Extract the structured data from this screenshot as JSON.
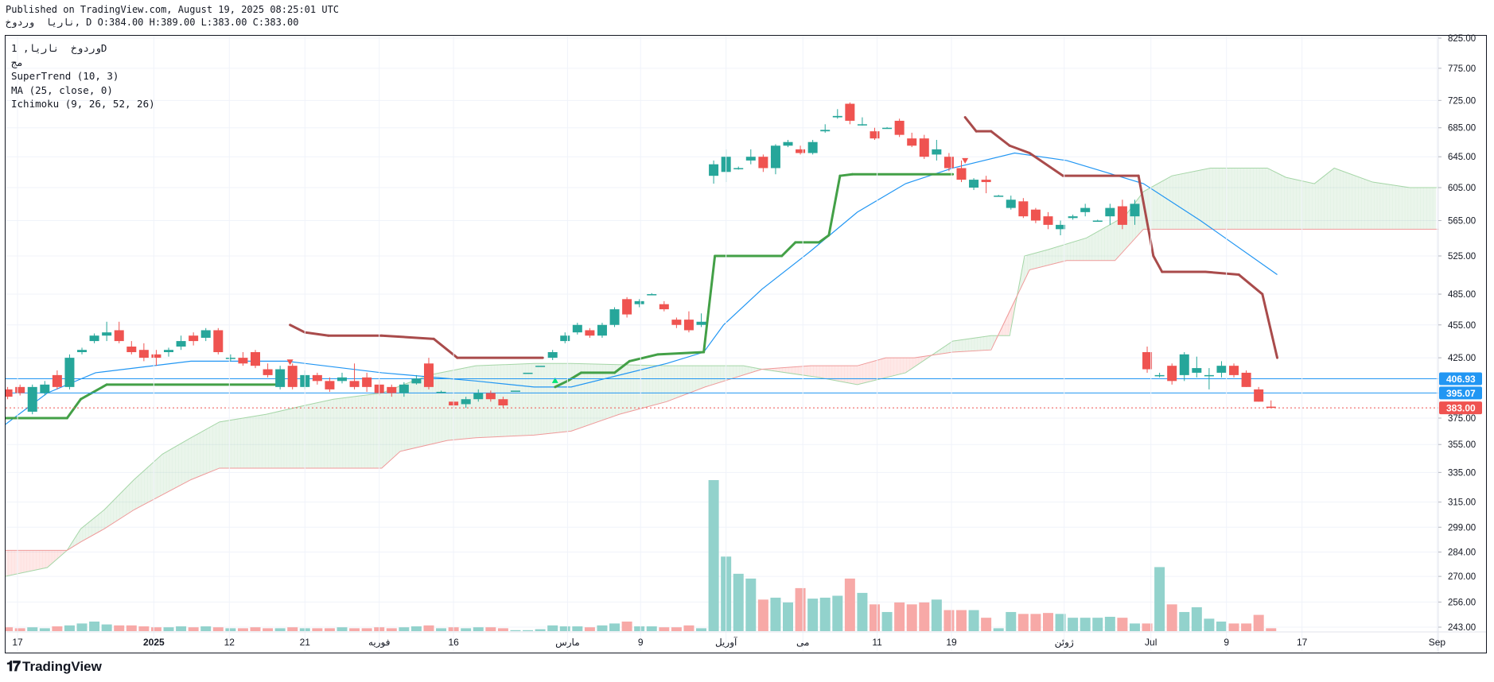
{
  "header": {
    "published": "Published on TradingView.com, August 19, 2025 08:25:01 UTC",
    "ohlc_line": "ناریا  وردوخ, D O:384.00 H:389.00 L:383.00 C:383.00"
  },
  "legend": {
    "symbol": "وردوخ  ناریا, 1D",
    "exchange": "مج",
    "supertrend": "SuperTrend (10, 3)",
    "ma": "MA (25, close, 0)",
    "ichimoku": "Ichimoku (9, 26, 52, 26)"
  },
  "brand": "TradingView",
  "colors": {
    "up": "#26a69a",
    "down": "#ef5350",
    "vol_up": "#92d2cc",
    "vol_down": "#f7a9a7",
    "st_up": "#43a047",
    "st_down": "#a94b4b",
    "ma": "#2196f3",
    "span_a": "#a5d6a7",
    "span_b": "#ef9a9a",
    "hline": "#2196f3"
  },
  "chart_data": {
    "type": "candlestick",
    "scale": "log",
    "ylim": [
      243,
      825
    ],
    "y_ticks": [
      "825.00",
      "775.00",
      "725.00",
      "685.00",
      "645.00",
      "605.00",
      "565.00",
      "525.00",
      "485.00",
      "455.00",
      "425.00",
      "375.00",
      "355.00",
      "335.00",
      "315.00",
      "299.00",
      "284.00",
      "270.00",
      "256.00",
      "243.00"
    ],
    "x_ticks": [
      {
        "i": 0.8,
        "label": "17"
      },
      {
        "i": 11.8,
        "label": "2025"
      },
      {
        "i": 17.9,
        "label": "12"
      },
      {
        "i": 24,
        "label": "21"
      },
      {
        "i": 30,
        "label": "فوریه"
      },
      {
        "i": 36,
        "label": "16"
      },
      {
        "i": 45.2,
        "label": "مارس"
      },
      {
        "i": 51.1,
        "label": "9"
      },
      {
        "i": 58,
        "label": "آوریل"
      },
      {
        "i": 64.2,
        "label": "می"
      },
      {
        "i": 70.2,
        "label": "11"
      },
      {
        "i": 76.2,
        "label": "19"
      },
      {
        "i": 85.3,
        "label": "ژوئن"
      },
      {
        "i": 92.3,
        "label": "Jul"
      },
      {
        "i": 98.4,
        "label": "9"
      },
      {
        "i": 104.5,
        "label": "17"
      },
      {
        "i": 115.4,
        "label": "Sep"
      }
    ],
    "price_labels": [
      {
        "value": 406.93,
        "label": "406.93",
        "color": "#2196f3"
      },
      {
        "value": 395.07,
        "label": "395.07",
        "color": "#2196f3"
      },
      {
        "value": 383.0,
        "label": "383.00",
        "color": "#ef5350"
      }
    ],
    "ohlc": [
      [
        398,
        400,
        390,
        392
      ],
      [
        400,
        402,
        393,
        395
      ],
      [
        380,
        402,
        378,
        400
      ],
      [
        395,
        405,
        393,
        402
      ],
      [
        410,
        414,
        398,
        400
      ],
      [
        400,
        428,
        398,
        425
      ],
      [
        430,
        434,
        428,
        432
      ],
      [
        440,
        447,
        438,
        445
      ],
      [
        445,
        458,
        440,
        448
      ],
      [
        450,
        458,
        438,
        440
      ],
      [
        435,
        440,
        428,
        430
      ],
      [
        432,
        438,
        422,
        425
      ],
      [
        428,
        432,
        418,
        425
      ],
      [
        430,
        434,
        426,
        432
      ],
      [
        435,
        445,
        432,
        440
      ],
      [
        445,
        448,
        436,
        440
      ],
      [
        443,
        452,
        440,
        450
      ],
      [
        450,
        452,
        428,
        430
      ],
      [
        425,
        428,
        422,
        425
      ],
      [
        425,
        430,
        418,
        420
      ],
      [
        430,
        432,
        416,
        418
      ],
      [
        415,
        420,
        408,
        410
      ],
      [
        400,
        418,
        398,
        415
      ],
      [
        418,
        420,
        398,
        400
      ],
      [
        400,
        414,
        398,
        410
      ],
      [
        410,
        412,
        402,
        405
      ],
      [
        405,
        408,
        396,
        398
      ],
      [
        405,
        412,
        403,
        408
      ],
      [
        405,
        420,
        398,
        400
      ],
      [
        408,
        412,
        396,
        400
      ],
      [
        402,
        406,
        393,
        395
      ],
      [
        400,
        402,
        392,
        395
      ],
      [
        395,
        404,
        392,
        402
      ],
      [
        403,
        410,
        402,
        407
      ],
      [
        420,
        425,
        398,
        400
      ],
      [
        396,
        397,
        395,
        396
      ],
      [
        388,
        390,
        383,
        385
      ],
      [
        386,
        392,
        383,
        390
      ],
      [
        390,
        398,
        388,
        395
      ],
      [
        395,
        397,
        388,
        390
      ],
      [
        390,
        392,
        383,
        385
      ],
      [
        397,
        397,
        397,
        397
      ],
      [
        412,
        412,
        412,
        412
      ],
      [
        418,
        418,
        418,
        418
      ],
      [
        425,
        432,
        423,
        430
      ],
      [
        440,
        448,
        438,
        445
      ],
      [
        448,
        457,
        446,
        455
      ],
      [
        450,
        452,
        443,
        445
      ],
      [
        445,
        457,
        443,
        455
      ],
      [
        455,
        472,
        453,
        470
      ],
      [
        480,
        482,
        462,
        465
      ],
      [
        475,
        480,
        472,
        478
      ],
      [
        484,
        486,
        484,
        485
      ],
      [
        475,
        478,
        468,
        470
      ],
      [
        460,
        462,
        452,
        455
      ],
      [
        460,
        468,
        448,
        450
      ],
      [
        455,
        466,
        453,
        458
      ],
      [
        620,
        640,
        610,
        635
      ],
      [
        625,
        655,
        612,
        645
      ],
      [
        630,
        632,
        628,
        630
      ],
      [
        640,
        655,
        635,
        645
      ],
      [
        645,
        648,
        625,
        630
      ],
      [
        630,
        662,
        622,
        660
      ],
      [
        660,
        668,
        658,
        665
      ],
      [
        655,
        660,
        648,
        650
      ],
      [
        650,
        668,
        648,
        665
      ],
      [
        680,
        690,
        678,
        682
      ],
      [
        700,
        712,
        698,
        702
      ],
      [
        720,
        722,
        690,
        695
      ],
      [
        690,
        700,
        688,
        690
      ],
      [
        680,
        685,
        668,
        670
      ],
      [
        685,
        686,
        684,
        685
      ],
      [
        695,
        698,
        672,
        675
      ],
      [
        670,
        678,
        658,
        660
      ],
      [
        670,
        675,
        642,
        645
      ],
      [
        648,
        668,
        640,
        655
      ],
      [
        645,
        650,
        626,
        630
      ],
      [
        630,
        640,
        612,
        615
      ],
      [
        605,
        617,
        602,
        615
      ],
      [
        615,
        620,
        598,
        612
      ],
      [
        595,
        596,
        594,
        595
      ],
      [
        580,
        595,
        578,
        590
      ],
      [
        588,
        592,
        568,
        570
      ],
      [
        578,
        580,
        562,
        565
      ],
      [
        570,
        575,
        555,
        560
      ],
      [
        555,
        565,
        548,
        560
      ],
      [
        568,
        572,
        566,
        570
      ],
      [
        575,
        585,
        570,
        580
      ],
      [
        565,
        566,
        564,
        565
      ],
      [
        570,
        585,
        560,
        580
      ],
      [
        582,
        590,
        555,
        560
      ],
      [
        570,
        590,
        560,
        585
      ],
      [
        430,
        435,
        412,
        415
      ],
      [
        410,
        412,
        408,
        410
      ],
      [
        418,
        420,
        402,
        405
      ],
      [
        410,
        430,
        405,
        428
      ],
      [
        412,
        426,
        408,
        416
      ],
      [
        410,
        416,
        398,
        410
      ],
      [
        412,
        422,
        408,
        418
      ],
      [
        418,
        420,
        408,
        410
      ],
      [
        412,
        414,
        400,
        400
      ],
      [
        398,
        400,
        388,
        388
      ],
      [
        384,
        389,
        383,
        383
      ]
    ],
    "volume": [
      4,
      3,
      4,
      3,
      5,
      6,
      8,
      10,
      7,
      6,
      6,
      5,
      4,
      4,
      5,
      4,
      5,
      4,
      3,
      3,
      4,
      3,
      3,
      4,
      3,
      3,
      3,
      4,
      3,
      3,
      4,
      3,
      4,
      5,
      6,
      3,
      4,
      3,
      4,
      4,
      3,
      1,
      1,
      2,
      6,
      5,
      5,
      4,
      6,
      8,
      10,
      5,
      5,
      4,
      4,
      6,
      3,
      158,
      78,
      60,
      55,
      33,
      35,
      30,
      45,
      34,
      35,
      37,
      55,
      40,
      28,
      20,
      30,
      28,
      30,
      33,
      22,
      22,
      22,
      14,
      3,
      20,
      18,
      18,
      19,
      18,
      14,
      14,
      14,
      15,
      14,
      8,
      8,
      67,
      28,
      20,
      25,
      13,
      10,
      8,
      8,
      17,
      3
    ],
    "supertrend": [
      [
        -0.2,
        375,
        "up"
      ],
      [
        4.8,
        375,
        "up"
      ],
      [
        5.9,
        390,
        "up"
      ],
      [
        8,
        402,
        "up"
      ],
      [
        22.1,
        402,
        "up"
      ],
      [
        22.8,
        455,
        "down"
      ],
      [
        24,
        448,
        "down"
      ],
      [
        25.9,
        445,
        "down"
      ],
      [
        30.2,
        445,
        "down"
      ],
      [
        34.4,
        442,
        "down"
      ],
      [
        36.3,
        425,
        "down"
      ],
      [
        43.2,
        425,
        "down"
      ],
      [
        44.2,
        400,
        "up"
      ],
      [
        45.2,
        405,
        "up"
      ],
      [
        46.3,
        412,
        "up"
      ],
      [
        49,
        412,
        "up"
      ],
      [
        50.2,
        422,
        "up"
      ],
      [
        52.5,
        428,
        "up"
      ],
      [
        56.2,
        430,
        "up"
      ],
      [
        57.1,
        525,
        "up"
      ],
      [
        62.5,
        525,
        "up"
      ],
      [
        63.6,
        540,
        "up"
      ],
      [
        65.5,
        540,
        "up"
      ],
      [
        66.3,
        548,
        "up"
      ],
      [
        67.2,
        620,
        "up"
      ],
      [
        68.2,
        622,
        "up"
      ],
      [
        76.3,
        622,
        "up"
      ],
      [
        77.3,
        700,
        "down"
      ],
      [
        78.2,
        680,
        "down"
      ],
      [
        79.4,
        680,
        "down"
      ],
      [
        80.9,
        660,
        "down"
      ],
      [
        82.5,
        650,
        "down"
      ],
      [
        85.2,
        620,
        "down"
      ],
      [
        91.3,
        620,
        "down"
      ],
      [
        92.5,
        525,
        "down"
      ],
      [
        93.2,
        508,
        "down"
      ],
      [
        96.7,
        508,
        "down"
      ],
      [
        99.4,
        505,
        "down"
      ],
      [
        101.3,
        485,
        "down"
      ],
      [
        102.5,
        425,
        "down"
      ]
    ],
    "supertrend_signals": [
      {
        "i": 22.8,
        "price": 420,
        "dir": "down"
      },
      {
        "i": 44.2,
        "price": 406,
        "dir": "up"
      },
      {
        "i": 77.3,
        "price": 638,
        "dir": "down"
      }
    ],
    "ma": [
      [
        -0.2,
        370
      ],
      [
        3.2,
        395
      ],
      [
        7.1,
        412
      ],
      [
        14.8,
        422
      ],
      [
        22.5,
        422
      ],
      [
        30.2,
        412
      ],
      [
        37.8,
        405
      ],
      [
        42.5,
        400
      ],
      [
        45.5,
        400
      ],
      [
        49.4,
        410
      ],
      [
        53.2,
        420
      ],
      [
        56.2,
        430
      ],
      [
        57.8,
        455
      ],
      [
        60.9,
        490
      ],
      [
        64.8,
        530
      ],
      [
        68.6,
        575
      ],
      [
        72.5,
        610
      ],
      [
        76.3,
        630
      ],
      [
        81.3,
        650
      ],
      [
        85.5,
        640
      ],
      [
        91.7,
        610
      ],
      [
        96.3,
        565
      ],
      [
        102.5,
        505
      ]
    ],
    "span_a": [
      [
        -0.2,
        270
      ],
      [
        3.2,
        275
      ],
      [
        4.8,
        285
      ],
      [
        5.9,
        298
      ],
      [
        7.8,
        310
      ],
      [
        10.2,
        330
      ],
      [
        12.5,
        348
      ],
      [
        14.8,
        360
      ],
      [
        17.1,
        372
      ],
      [
        20.9,
        378
      ],
      [
        24,
        385
      ],
      [
        26.3,
        390
      ],
      [
        30.2,
        395
      ],
      [
        34,
        410
      ],
      [
        37.8,
        418
      ],
      [
        42.5,
        420
      ],
      [
        45.5,
        420
      ],
      [
        53.2,
        418
      ],
      [
        59.4,
        418
      ],
      [
        60.9,
        415
      ],
      [
        65.5,
        408
      ],
      [
        68.6,
        402
      ],
      [
        72.5,
        412
      ],
      [
        76.3,
        440
      ],
      [
        79.4,
        445
      ],
      [
        80.9,
        445
      ],
      [
        82.1,
        525
      ],
      [
        84,
        532
      ],
      [
        87.1,
        545
      ],
      [
        90.2,
        570
      ],
      [
        91.7,
        600
      ],
      [
        94,
        620
      ],
      [
        97.1,
        630
      ],
      [
        101.7,
        630
      ],
      [
        103.2,
        618
      ],
      [
        105.5,
        610
      ],
      [
        107.1,
        630
      ],
      [
        110.2,
        612
      ],
      [
        113.2,
        605
      ],
      [
        115.5,
        605
      ]
    ],
    "span_b": [
      [
        -0.2,
        285
      ],
      [
        4,
        285
      ],
      [
        4.8,
        285
      ],
      [
        5.9,
        290
      ],
      [
        7.8,
        298
      ],
      [
        10.2,
        310
      ],
      [
        14.8,
        330
      ],
      [
        17.1,
        338
      ],
      [
        22.5,
        338
      ],
      [
        30.2,
        338
      ],
      [
        31.7,
        350
      ],
      [
        35.5,
        358
      ],
      [
        37.8,
        360
      ],
      [
        42.5,
        362
      ],
      [
        45.5,
        365
      ],
      [
        49.4,
        378
      ],
      [
        53.2,
        388
      ],
      [
        56.3,
        400
      ],
      [
        60.9,
        415
      ],
      [
        64.8,
        418
      ],
      [
        68.6,
        418
      ],
      [
        70.9,
        425
      ],
      [
        73.2,
        425
      ],
      [
        76.3,
        430
      ],
      [
        79.4,
        432
      ],
      [
        82.5,
        510
      ],
      [
        85.5,
        520
      ],
      [
        89.4,
        520
      ],
      [
        91.7,
        555
      ],
      [
        115.5,
        555
      ]
    ]
  }
}
